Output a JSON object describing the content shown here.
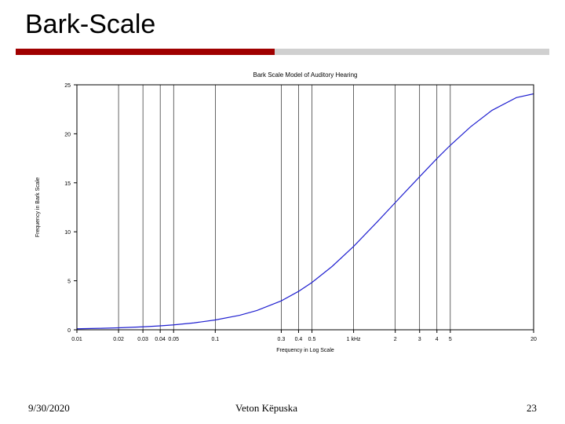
{
  "slide": {
    "title": "Bark-Scale",
    "rule_accent_color": "#a00000",
    "rule_rest_color": "#d0d0d0"
  },
  "footer": {
    "date": "9/30/2020",
    "author": "Veton Këpuska",
    "page": "23"
  },
  "chart": {
    "type": "line",
    "title": "Bark Scale Model of Auditory Hearing",
    "title_fontsize": 8,
    "xlabel": "Frequency in Log Scale",
    "ylabel": "Frequency in Bark Scale",
    "label_fontsize": 7,
    "tick_fontsize": 7,
    "background_color": "#ffffff",
    "axis_color": "#000000",
    "grid_color": "#000000",
    "line_color": "#2020d0",
    "line_width": 1.2,
    "xscale": "log",
    "xlim_khz": [
      0.01,
      20
    ],
    "xticks_khz": [
      0.01,
      0.02,
      0.03,
      0.04,
      0.05,
      0.1,
      0.3,
      0.4,
      0.5,
      1,
      2,
      3,
      4,
      5,
      20
    ],
    "xtick_labels": [
      "0.01",
      "0.02",
      "0.03",
      "0.04",
      "0.05",
      "0.1",
      "0.3",
      "0.4",
      "0.5",
      "1 kHz",
      "2",
      "3",
      "4",
      "5",
      "20"
    ],
    "ylim": [
      0,
      25
    ],
    "yticks": [
      0,
      5,
      10,
      15,
      20,
      25
    ],
    "grid_x_khz": [
      0.02,
      0.03,
      0.04,
      0.05,
      0.1,
      0.3,
      0.4,
      0.5,
      1,
      2,
      3,
      4,
      5
    ],
    "series": {
      "x_khz": [
        0.01,
        0.015,
        0.02,
        0.03,
        0.04,
        0.05,
        0.07,
        0.1,
        0.15,
        0.2,
        0.3,
        0.4,
        0.5,
        0.7,
        1,
        1.5,
        2,
        3,
        4,
        5,
        7,
        10,
        15,
        20
      ],
      "y_bark": [
        0.1,
        0.15,
        0.2,
        0.3,
        0.4,
        0.5,
        0.7,
        1.0,
        1.48,
        1.97,
        2.95,
        3.92,
        4.83,
        6.47,
        8.51,
        11.09,
        12.98,
        15.62,
        17.47,
        18.83,
        20.71,
        22.39,
        23.69,
        24.08
      ]
    }
  }
}
